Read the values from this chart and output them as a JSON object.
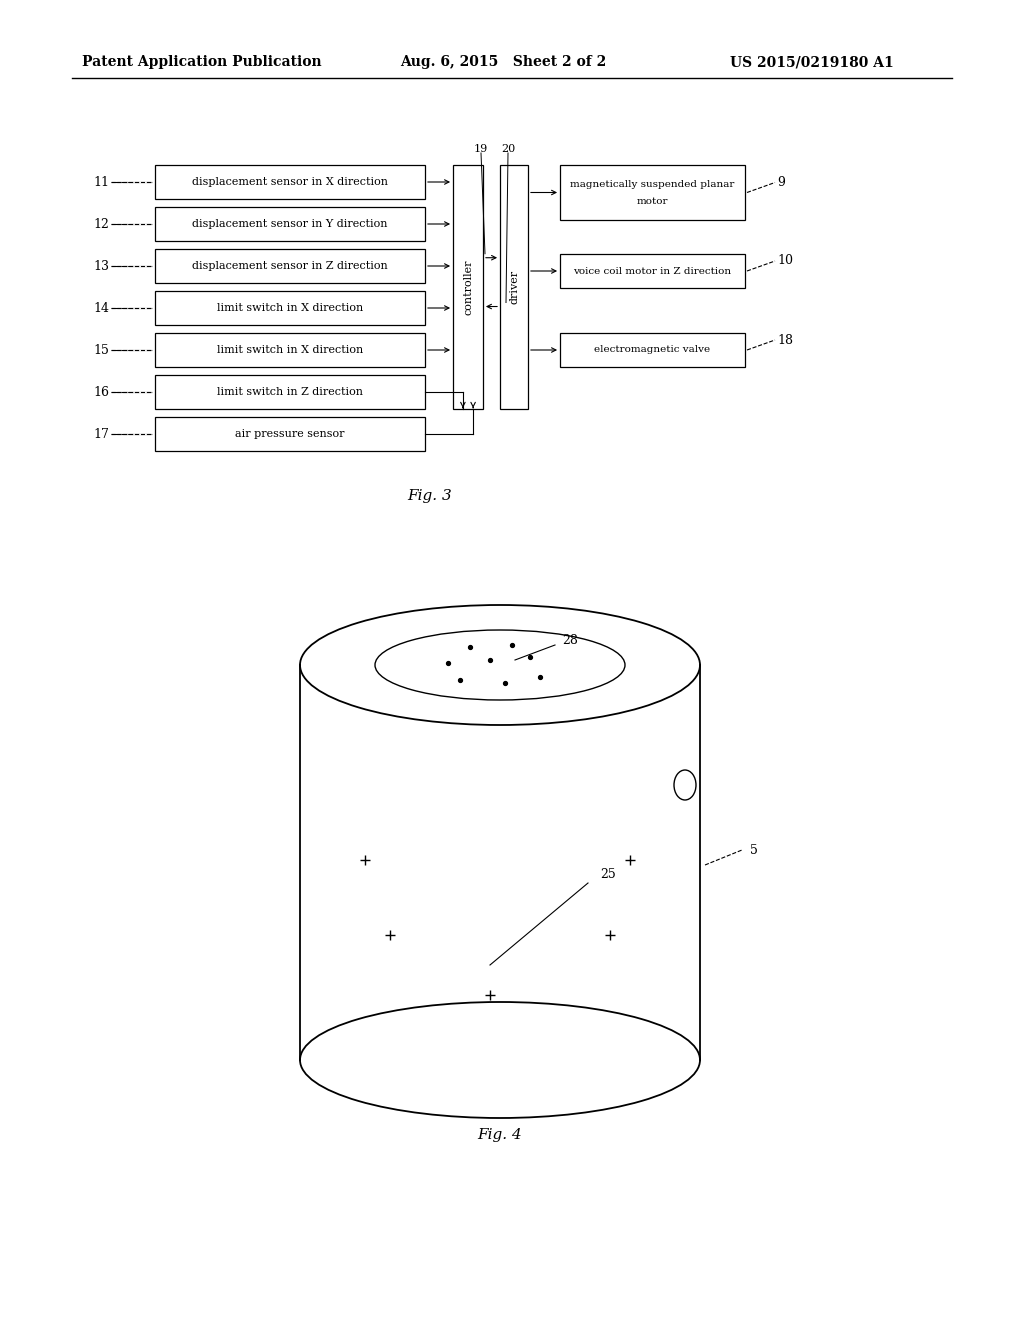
{
  "header_left": "Patent Application Publication",
  "header_mid": "Aug. 6, 2015   Sheet 2 of 2",
  "header_right": "US 2015/0219180 A1",
  "bg_color": "#ffffff",
  "fig3_caption": "Fig. 3",
  "fig4_caption": "Fig. 4",
  "left_boxes": [
    {
      "label": "displacement sensor in X direction",
      "num": "11"
    },
    {
      "label": "displacement sensor in Y direction",
      "num": "12"
    },
    {
      "label": "displacement sensor in Z direction",
      "num": "13"
    },
    {
      "label": "limit switch in X direction",
      "num": "14"
    },
    {
      "label": "limit switch in X direction",
      "num": "15"
    },
    {
      "label": "limit switch in Z direction",
      "num": "16"
    },
    {
      "label": "air pressure sensor",
      "num": "17"
    }
  ],
  "right_boxes": [
    {
      "label": "magnetically suspended planar\nmotor",
      "num": "9"
    },
    {
      "label": "voice coil motor in Z direction",
      "num": "10"
    },
    {
      "label": "electromagnetic valve",
      "num": "18"
    }
  ],
  "controller_label": "controller",
  "driver_label": "driver",
  "controller_num": "19",
  "driver_num": "20",
  "label_25": "25",
  "label_28": "28",
  "label_5": "5"
}
